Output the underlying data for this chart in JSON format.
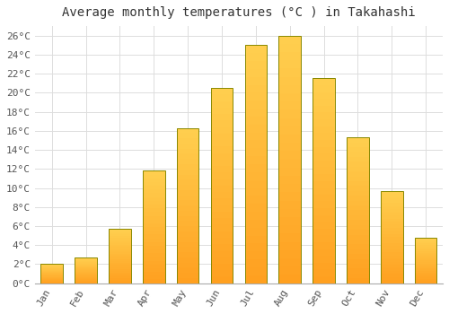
{
  "title": "Average monthly temperatures (°C ) in Takahashi",
  "months": [
    "Jan",
    "Feb",
    "Mar",
    "Apr",
    "May",
    "Jun",
    "Jul",
    "Aug",
    "Sep",
    "Oct",
    "Nov",
    "Dec"
  ],
  "values": [
    2.0,
    2.7,
    5.7,
    11.8,
    16.3,
    20.5,
    25.0,
    26.0,
    21.5,
    15.3,
    9.7,
    4.8
  ],
  "bar_color_top": "#FFD050",
  "bar_color_bottom": "#FFA020",
  "bar_edge_color": "#888800",
  "ylim": [
    0,
    27
  ],
  "yticks": [
    0,
    2,
    4,
    6,
    8,
    10,
    12,
    14,
    16,
    18,
    20,
    22,
    24,
    26
  ],
  "background_color": "#ffffff",
  "grid_color": "#dddddd",
  "title_fontsize": 10,
  "tick_fontsize": 8,
  "bar_width": 0.65
}
